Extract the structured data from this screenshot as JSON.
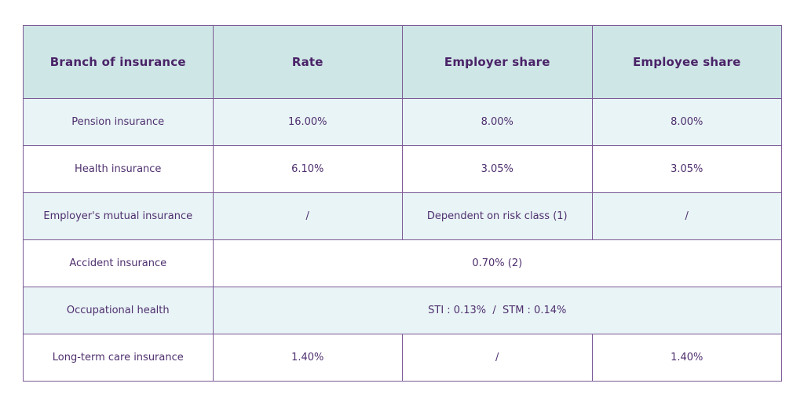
{
  "table": {
    "headers": [
      "Branch of insurance",
      "Rate",
      "Employer share",
      "Employee share"
    ],
    "rows": {
      "pension": {
        "branch": "Pension insurance",
        "rate": "16.00%",
        "employer": "8.00%",
        "employee": "8.00%"
      },
      "health": {
        "branch": "Health insurance",
        "rate": "6.10%",
        "employer": "3.05%",
        "employee": "3.05%"
      },
      "mutual": {
        "branch": "Employer's mutual insurance",
        "rate": "/",
        "employer": "Dependent on risk class (1)",
        "employee": "/"
      },
      "accident": {
        "branch": "Accident insurance",
        "value": "0.70% (2)"
      },
      "occupational": {
        "branch": "Occupational health",
        "value": "STI : 0.13%  /  STM : 0.14%"
      },
      "longterm": {
        "branch": "Long-term care insurance",
        "rate": "1.40%",
        "employer": "/",
        "employee": "1.40%"
      }
    }
  },
  "colors": {
    "header_bg": "#cfe6e6",
    "row_shade": "#e9f4f6",
    "border": "#7b5a96",
    "text": "#4a2368"
  }
}
